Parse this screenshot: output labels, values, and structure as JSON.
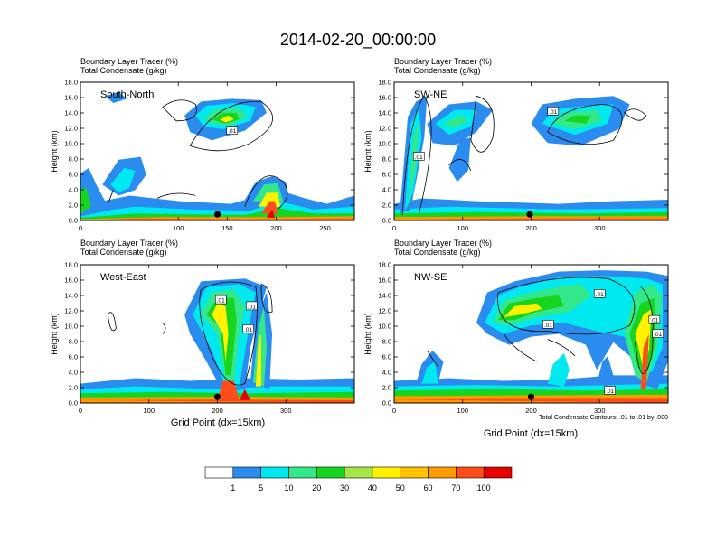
{
  "title": "2014-02-20_00:00:00",
  "colors": {
    "white": "#ffffff",
    "blue": "#2b8cf0",
    "cyan": "#00e8f0",
    "seagreen": "#33e88a",
    "green": "#17d51e",
    "lime": "#a6e64a",
    "yellow": "#fff200",
    "gold": "#ffc300",
    "orange": "#ff9a00",
    "redorange": "#ff4d1a",
    "red": "#e80000",
    "contour": "#000000"
  },
  "colorbar": {
    "levels": [
      "1",
      "5",
      "10",
      "20",
      "30",
      "40",
      "50",
      "60",
      "70",
      "100"
    ],
    "fills": [
      "white",
      "blue",
      "cyan",
      "seagreen",
      "green",
      "lime",
      "yellow",
      "gold",
      "orange",
      "redorange",
      "red"
    ]
  },
  "chart_data": [
    {
      "type": "heatmap",
      "subtitle1": "Boundary Layer Tracer   (%)",
      "subtitle2": "Total Condensate   (g/kg)",
      "label": "South-North",
      "ylabel": "Height (km)",
      "xlabel": "",
      "xlim": [
        0,
        280
      ],
      "ylim": [
        0,
        18
      ],
      "xticks": [
        "0",
        "100",
        "150",
        "200",
        "250"
      ],
      "xtick_values": [
        0,
        100,
        150,
        200,
        250
      ],
      "yticks": [
        "0.0",
        "2.0",
        "4.0",
        "6.0",
        "8.0",
        "10.0",
        "12.0",
        "14.0",
        "16.0",
        "18.0"
      ],
      "marker": [
        140,
        0.8
      ],
      "contour_labels": [
        {
          "text": ".01",
          "x": 155,
          "y": 11.7
        }
      ]
    },
    {
      "type": "heatmap",
      "subtitle1": "Boundary Layer Tracer   (%)",
      "subtitle2": "Total Condensate   (g/kg)",
      "label": "SW-NE",
      "ylabel": "Height (km)",
      "xlabel": "",
      "xlim": [
        0,
        400
      ],
      "ylim": [
        0,
        18
      ],
      "xticks": [
        "0",
        "100",
        "200",
        "300"
      ],
      "xtick_values": [
        0,
        100,
        200,
        300
      ],
      "yticks": [
        "0.0",
        "2.0",
        "4.0",
        "6.0",
        "8.0",
        "10.0",
        "12.0",
        "14.0",
        "16.0",
        "18.0"
      ],
      "marker": [
        198,
        0.8
      ],
      "contour_labels": [
        {
          "text": ".01",
          "x": 36,
          "y": 8.3
        },
        {
          "text": ".01",
          "x": 232,
          "y": 14.2
        }
      ]
    },
    {
      "type": "heatmap",
      "subtitle1": "Boundary Layer Tracer   (%)",
      "subtitle2": "Total Condensate   (g/kg)",
      "label": "West-East",
      "ylabel": "Height (km)",
      "xlabel": "Grid Point (dx=15km)",
      "xlim": [
        0,
        400
      ],
      "ylim": [
        0,
        18
      ],
      "xticks": [
        "0",
        "100",
        "200",
        "300"
      ],
      "xtick_values": [
        0,
        100,
        200,
        300
      ],
      "yticks": [
        "0.0",
        "2.0",
        "4.0",
        "6.0",
        "8.0",
        "10.0",
        "12.0",
        "14.0",
        "16.0",
        "18.0"
      ],
      "marker": [
        200,
        0.8
      ],
      "contour_labels": [
        {
          "text": ".01",
          "x": 205,
          "y": 13.4
        },
        {
          "text": ".01",
          "x": 250,
          "y": 12.6
        },
        {
          "text": ".01",
          "x": 245,
          "y": 9.6
        }
      ]
    },
    {
      "type": "heatmap",
      "subtitle1": "Boundary Layer Tracer   (%)",
      "subtitle2": "Total Condensate   (g/kg)",
      "label": "NW-SE",
      "ylabel": "Height (km)",
      "xlabel": "Grid Point (dx=15km)",
      "xlim": [
        0,
        400
      ],
      "ylim": [
        0,
        18
      ],
      "xticks": [
        "0",
        "100",
        "200",
        "300"
      ],
      "xtick_values": [
        0,
        100,
        200,
        300
      ],
      "yticks": [
        "0.0",
        "2.0",
        "4.0",
        "6.0",
        "8.0",
        "10.0",
        "12.0",
        "14.0",
        "16.0",
        "18.0"
      ],
      "marker": [
        200,
        0.8
      ],
      "contour_labels": [
        {
          "text": ".01",
          "x": 300,
          "y": 14.2
        },
        {
          "text": ".01",
          "x": 225,
          "y": 10.2
        },
        {
          "text": ".01",
          "x": 380,
          "y": 10.8
        },
        {
          "text": ".01",
          "x": 385,
          "y": 9.0
        },
        {
          "text": ".01",
          "x": 315,
          "y": 1.6
        }
      ],
      "footnote": "Total Condensate Contours: .01 to .01 by .000"
    }
  ]
}
